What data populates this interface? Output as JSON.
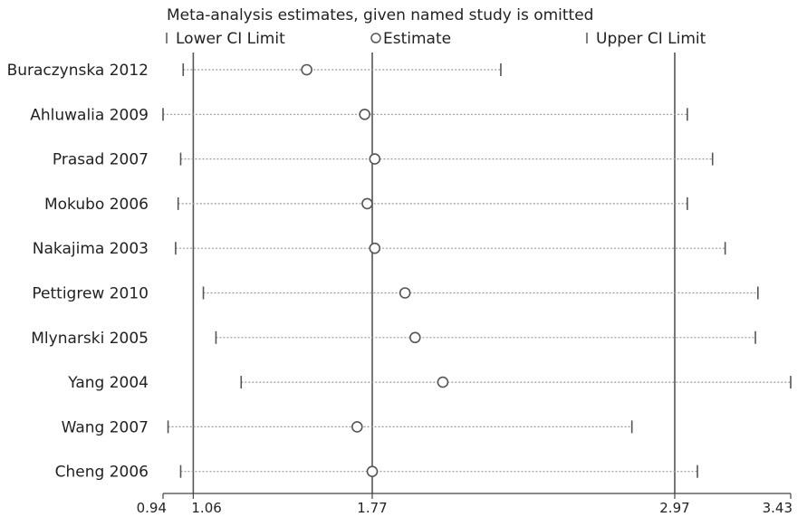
{
  "chart_data": {
    "type": "scatter",
    "title": "Meta-analysis estimates, given named study is omitted",
    "legend": [
      {
        "symbol": "lower-ci-bar",
        "label": "Lower CI Limit"
      },
      {
        "symbol": "estimate-circle",
        "label": "Estimate"
      },
      {
        "symbol": "upper-ci-bar",
        "label": "Upper CI Limit"
      }
    ],
    "x_ticks": [
      0.94,
      1.06,
      1.77,
      2.97,
      3.43
    ],
    "x_tick_labels": [
      "0.94",
      "1.06",
      "1.77",
      "2.97",
      "3.43"
    ],
    "xlim": [
      0.94,
      3.43
    ],
    "reference_lines": [
      1.06,
      1.77,
      2.97
    ],
    "studies": [
      {
        "name": "Buraczynska 2012",
        "lower": 1.02,
        "estimate": 1.51,
        "upper": 2.28
      },
      {
        "name": "Ahluwalia 2009",
        "lower": 0.94,
        "estimate": 1.74,
        "upper": 3.02
      },
      {
        "name": "Prasad 2007",
        "lower": 1.01,
        "estimate": 1.78,
        "upper": 3.12
      },
      {
        "name": "Mokubo 2006",
        "lower": 1.0,
        "estimate": 1.75,
        "upper": 3.02
      },
      {
        "name": "Nakajima 2003",
        "lower": 0.99,
        "estimate": 1.78,
        "upper": 3.17
      },
      {
        "name": "Pettigrew 2010",
        "lower": 1.1,
        "estimate": 1.9,
        "upper": 3.3
      },
      {
        "name": "Mlynarski 2005",
        "lower": 1.15,
        "estimate": 1.94,
        "upper": 3.29
      },
      {
        "name": "Yang 2004",
        "lower": 1.25,
        "estimate": 2.05,
        "upper": 3.43
      },
      {
        "name": "Wang 2007",
        "lower": 0.96,
        "estimate": 1.71,
        "upper": 2.8
      },
      {
        "name": "Cheng 2006",
        "lower": 1.01,
        "estimate": 1.77,
        "upper": 3.06
      }
    ],
    "colors": {
      "text": "#222222",
      "reference_line": "#555555",
      "axis": "#444444",
      "dotted_line": "#9a9a9a",
      "marker": "#555555"
    }
  }
}
